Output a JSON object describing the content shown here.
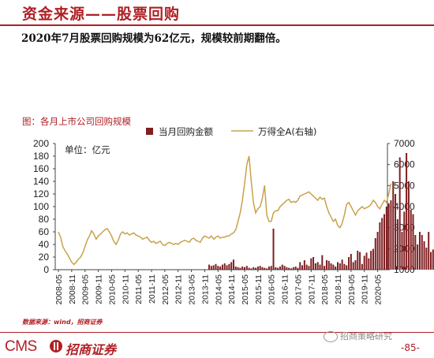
{
  "header": {
    "title": "资金来源——股票回购",
    "subtitle": "2020年7月股票回购规模为62亿元，规模较前期翻倍。"
  },
  "chart_caption": "图：各月上市公司回购规模",
  "chart_data": {
    "type": "bar+line",
    "unit_label": "单位：亿元",
    "legend": [
      "当月回购金额",
      "万得全A(右轴)"
    ],
    "legend_placement": "top-center",
    "y_left": {
      "ylim": [
        0,
        200
      ],
      "ticks": [
        0,
        20,
        40,
        60,
        80,
        100,
        120,
        140,
        160,
        180,
        200
      ]
    },
    "y_right": {
      "ylim": [
        1000,
        7000
      ],
      "ticks": [
        1000,
        2000,
        3000,
        4000,
        5000,
        6000,
        7000
      ]
    },
    "x_tick_labels": [
      "2008-05",
      "2008-11",
      "2009-05",
      "2009-11",
      "2010-05",
      "2010-11",
      "2011-05",
      "2011-11",
      "2012-05",
      "2012-11",
      "2013-05",
      "2013-11",
      "2014-05",
      "2014-11",
      "2015-05",
      "2015-11",
      "2016-05",
      "2016-11",
      "2017-05",
      "2017-11",
      "2018-05",
      "2018-11",
      "2019-05",
      "2019-11",
      "2020-05"
    ],
    "series_bar": {
      "name": "当月回购金额",
      "start": "2008-05",
      "values": [
        0,
        0,
        0,
        0,
        0,
        0,
        0,
        0,
        0,
        0,
        0,
        0,
        0,
        0,
        0,
        0,
        0,
        0,
        0,
        0,
        0,
        0,
        0,
        0,
        0,
        0,
        0,
        0,
        0,
        0,
        0,
        0,
        0,
        0,
        0,
        0,
        0,
        0,
        0,
        0,
        0,
        0,
        0,
        0,
        0,
        0,
        0,
        0,
        0,
        0,
        0,
        0,
        0,
        0,
        0,
        0,
        0,
        0,
        0,
        0,
        0,
        0,
        0,
        0,
        0,
        0,
        0,
        0,
        8,
        6,
        7,
        9,
        6,
        5,
        8,
        10,
        7,
        9,
        12,
        16,
        5,
        4,
        3,
        5,
        4,
        6,
        3,
        2,
        4,
        3,
        5,
        6,
        4,
        3,
        2,
        5,
        6,
        65,
        4,
        3,
        5,
        8,
        6,
        4,
        3,
        2,
        4,
        5,
        3,
        12,
        7,
        15,
        8,
        6,
        18,
        20,
        10,
        12,
        8,
        23,
        6,
        15,
        14,
        10,
        8,
        5,
        12,
        10,
        16,
        9,
        7,
        20,
        25,
        12,
        15,
        30,
        28,
        9,
        22,
        27,
        18,
        30,
        33,
        50,
        60,
        75,
        82,
        88,
        100,
        105,
        110,
        140,
        120,
        80,
        178,
        60,
        92,
        185,
        140,
        95,
        88,
        55,
        40,
        60,
        55,
        45,
        35,
        60,
        28,
        32,
        62
      ]
    },
    "series_line": {
      "name": "万得全A(右轴)",
      "start": "2008-05",
      "values": [
        2800,
        2550,
        2100,
        1900,
        1750,
        1550,
        1350,
        1250,
        1350,
        1500,
        1600,
        1800,
        2100,
        2400,
        2600,
        2850,
        2700,
        2450,
        2600,
        2700,
        2800,
        2900,
        2950,
        2800,
        2600,
        2350,
        2200,
        2400,
        2700,
        2800,
        2700,
        2750,
        2650,
        2700,
        2750,
        2650,
        2600,
        2550,
        2450,
        2500,
        2550,
        2400,
        2300,
        2350,
        2250,
        2300,
        2350,
        2200,
        2150,
        2250,
        2300,
        2250,
        2200,
        2250,
        2200,
        2300,
        2350,
        2400,
        2350,
        2300,
        2450,
        2500,
        2400,
        2350,
        2300,
        2500,
        2600,
        2550,
        2500,
        2600,
        2450,
        2550,
        2600,
        2500,
        2550,
        2550,
        2600,
        2600,
        2700,
        2750,
        2900,
        3300,
        3700,
        4300,
        5100,
        6000,
        6400,
        5200,
        4200,
        3700,
        3900,
        4000,
        4400,
        5000,
        3600,
        3300,
        3300,
        3700,
        3800,
        3800,
        4000,
        4100,
        4200,
        4300,
        4350,
        4200,
        4250,
        4200,
        4300,
        4500,
        4550,
        4600,
        4650,
        4700,
        4600,
        4500,
        4400,
        4300,
        4450,
        4350,
        4400,
        4000,
        3700,
        3500,
        3300,
        3400,
        3100,
        3000,
        3200,
        3600,
        4100,
        4200,
        4000,
        3800,
        3600,
        3800,
        3900,
        4000,
        3900,
        3950,
        4000,
        4100,
        4300,
        4200,
        4000,
        3900,
        4100,
        4300,
        4200,
        4600,
        5100
      ]
    }
  },
  "source": "数据来源：wind，招商证券",
  "footer": {
    "logo_text": "CMS",
    "logo_cn": "招商证券",
    "wechat": "招商策略研究",
    "page_number": "-85-"
  },
  "colors": {
    "accent": "#b01f24",
    "bar": "#7f1f22",
    "line": "#c8a24a"
  }
}
